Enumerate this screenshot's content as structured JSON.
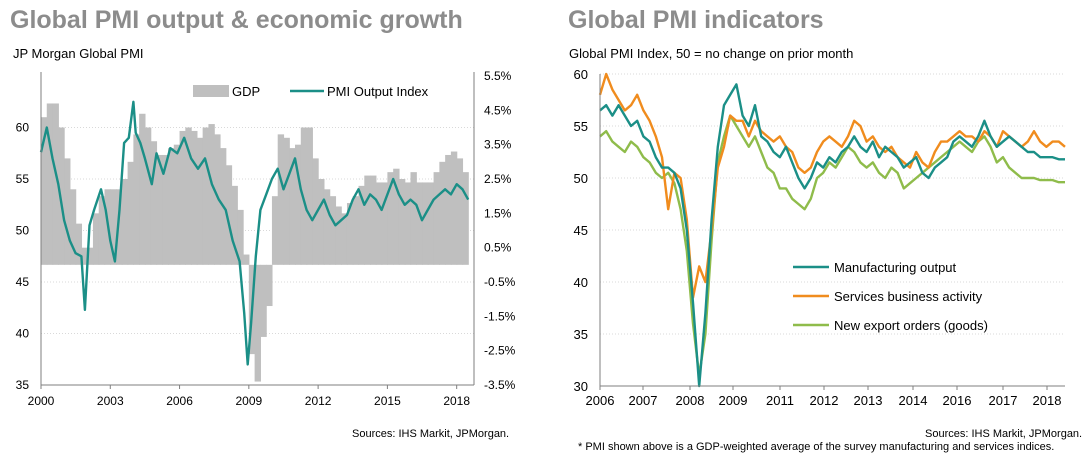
{
  "left": {
    "title": "Global PMI output & economic growth",
    "subtitle": "JP Morgan Global  PMI",
    "source": "Sources: IHS Markit, JPMorgan."
  },
  "right": {
    "title": "Global PMI indicators",
    "subtitle": "Global  PMI Index, 50 = no change on prior month",
    "source": "Sources: IHS Markit, JPMorgan.",
    "footnote": "* PMI shown above is a GDP-weighted average of the survey manufacturing and services indices."
  },
  "chart_data": [
    {
      "type": "bar",
      "secondary_type": "line",
      "x_ticks": [
        "2000",
        "2003",
        "2006",
        "2009",
        "2012",
        "2015",
        "2018"
      ],
      "ylim": [
        35,
        65
      ],
      "y_ticks": [
        "60",
        "55",
        "50",
        "45",
        "40",
        "35"
      ],
      "y2lim": [
        -3.5,
        5.5
      ],
      "y2_ticks": [
        "5.5%",
        "4.5%",
        "3.5%",
        "2.5%",
        "1.5%",
        "0.5%",
        "-0.5%",
        "-1.5%",
        "-2.5%",
        "-3.5%"
      ],
      "legend": {
        "position": "top-right",
        "entries": [
          "GDP",
          "PMI Output Index"
        ]
      },
      "colors": {
        "gdp": "#bfbfbf",
        "pmi": "#1b8f87"
      },
      "series": [
        {
          "name": "GDP",
          "axis": "right",
          "x": [
            2000.0,
            2000.25,
            2000.5,
            2000.75,
            2001.0,
            2001.25,
            2001.5,
            2001.75,
            2002.0,
            2002.25,
            2002.5,
            2002.75,
            2003.0,
            2003.25,
            2003.5,
            2003.75,
            2004.0,
            2004.25,
            2004.5,
            2004.75,
            2005.0,
            2005.25,
            2005.5,
            2005.75,
            2006.0,
            2006.25,
            2006.5,
            2006.75,
            2007.0,
            2007.25,
            2007.5,
            2007.75,
            2008.0,
            2008.25,
            2008.5,
            2008.75,
            2009.0,
            2009.25,
            2009.5,
            2009.75,
            2010.0,
            2010.25,
            2010.5,
            2010.75,
            2011.0,
            2011.25,
            2011.5,
            2011.75,
            2012.0,
            2012.25,
            2012.5,
            2012.75,
            2013.0,
            2013.25,
            2013.5,
            2013.75,
            2014.0,
            2014.25,
            2014.5,
            2014.75,
            2015.0,
            2015.25,
            2015.5,
            2015.75,
            2016.0,
            2016.25,
            2016.5,
            2016.75,
            2017.0,
            2017.25,
            2017.5,
            2017.75,
            2018.0,
            2018.25
          ],
          "values": [
            4.3,
            4.7,
            4.7,
            4.0,
            3.1,
            2.2,
            1.2,
            0.5,
            0.5,
            1.5,
            2.0,
            2.2,
            2.2,
            2.2,
            2.5,
            3.0,
            3.8,
            4.4,
            4.0,
            3.6,
            3.2,
            3.2,
            3.4,
            3.5,
            3.9,
            4.0,
            3.9,
            3.7,
            4.0,
            4.1,
            3.8,
            3.4,
            2.9,
            2.3,
            1.6,
            0.3,
            -2.6,
            -3.4,
            -2.1,
            -1.2,
            2.0,
            3.8,
            3.7,
            3.4,
            3.5,
            4.0,
            4.0,
            3.1,
            2.5,
            2.2,
            2.0,
            1.7,
            1.5,
            1.8,
            2.0,
            2.3,
            2.6,
            2.6,
            2.4,
            2.4,
            2.7,
            2.8,
            2.5,
            2.4,
            2.7,
            2.4,
            2.4,
            2.4,
            2.7,
            3.0,
            3.2,
            3.3,
            3.1,
            2.7
          ]
        },
        {
          "name": "PMI Output Index",
          "axis": "left",
          "x": [
            2000.0,
            2000.25,
            2000.5,
            2000.75,
            2001.0,
            2001.25,
            2001.5,
            2001.75,
            2001.9,
            2002.1,
            2002.3,
            2002.6,
            2002.8,
            2003.0,
            2003.2,
            2003.4,
            2003.6,
            2003.8,
            2004.0,
            2004.1,
            2004.3,
            2004.5,
            2004.8,
            2005.0,
            2005.3,
            2005.6,
            2005.9,
            2006.2,
            2006.5,
            2006.8,
            2007.1,
            2007.4,
            2007.7,
            2008.0,
            2008.3,
            2008.6,
            2008.8,
            2008.95,
            2009.1,
            2009.3,
            2009.5,
            2009.75,
            2010.0,
            2010.25,
            2010.5,
            2010.75,
            2011.0,
            2011.25,
            2011.5,
            2011.75,
            2012.0,
            2012.25,
            2012.5,
            2012.75,
            2013.0,
            2013.25,
            2013.5,
            2013.75,
            2014.0,
            2014.25,
            2014.5,
            2014.75,
            2015.0,
            2015.25,
            2015.5,
            2015.75,
            2016.0,
            2016.25,
            2016.5,
            2016.75,
            2017.0,
            2017.25,
            2017.5,
            2017.75,
            2018.0,
            2018.25,
            2018.5
          ],
          "values": [
            57.6,
            60.0,
            57.0,
            54.5,
            51.0,
            49.0,
            47.8,
            47.5,
            42.3,
            50.5,
            52.0,
            54.0,
            52.0,
            49.0,
            47.0,
            52.0,
            58.5,
            59.0,
            62.5,
            59.5,
            58.5,
            57.0,
            54.5,
            57.5,
            55.5,
            58.0,
            57.5,
            59.0,
            57.0,
            56.0,
            57.0,
            54.5,
            53.0,
            52.0,
            49.0,
            47.0,
            42.0,
            37.0,
            41.0,
            47.5,
            52.0,
            53.5,
            55.0,
            56.0,
            54.0,
            55.5,
            57.0,
            54.0,
            52.0,
            51.0,
            52.0,
            53.0,
            51.5,
            50.5,
            51.0,
            51.5,
            53.0,
            54.0,
            52.5,
            53.5,
            53.0,
            52.0,
            53.5,
            55.0,
            53.5,
            52.5,
            53.0,
            52.5,
            51.0,
            52.0,
            53.0,
            53.5,
            54.0,
            53.5,
            54.5,
            54.0,
            53.0
          ]
        }
      ]
    },
    {
      "type": "line",
      "x_ticks": [
        "2006",
        "2007",
        "2008",
        "2009",
        "2011",
        "2012",
        "2013",
        "2014",
        "2016",
        "2017",
        "2018"
      ],
      "ylim": [
        30,
        60
      ],
      "y_ticks": [
        "60",
        "55",
        "50",
        "45",
        "40",
        "35",
        "30"
      ],
      "legend": {
        "position": "center-right",
        "entries": [
          "Manufacturing output",
          "Services business activity",
          "New export orders (goods)"
        ]
      },
      "colors": {
        "manufacturing": "#1b8f87",
        "services": "#f08c1e",
        "exports": "#8fbc4b"
      },
      "series": [
        {
          "name": "Manufacturing output",
          "x": [
            0,
            2,
            4,
            6,
            8,
            10,
            12,
            14,
            16,
            18,
            20,
            22,
            24,
            26,
            28,
            30,
            32,
            34,
            36,
            38,
            40,
            42,
            44,
            46,
            48,
            50,
            52,
            54,
            56,
            58,
            60,
            62,
            64,
            66,
            68,
            70,
            72,
            74,
            76,
            78,
            80,
            82,
            84,
            86,
            88,
            90,
            92,
            94,
            96,
            98,
            100,
            102,
            104,
            106,
            108,
            110,
            112,
            114,
            116,
            118,
            120,
            122,
            124,
            126,
            128,
            130,
            132,
            134,
            136,
            138,
            140,
            142,
            144,
            146,
            148,
            150
          ],
          "values": [
            56.5,
            57.0,
            56.0,
            57.0,
            56.0,
            55.0,
            55.5,
            54.0,
            53.5,
            52.0,
            51.0,
            51.0,
            50.5,
            49.0,
            45.0,
            38.0,
            30.0,
            37.0,
            46.0,
            53.0,
            57.0,
            58.0,
            59.0,
            56.0,
            55.0,
            57.0,
            54.0,
            53.5,
            52.5,
            52.0,
            53.0,
            51.5,
            50.0,
            49.0,
            50.0,
            51.5,
            51.0,
            52.0,
            51.5,
            52.5,
            53.0,
            54.0,
            53.0,
            52.5,
            53.5,
            52.0,
            53.0,
            52.5,
            52.0,
            51.0,
            51.5,
            52.0,
            50.5,
            50.0,
            51.0,
            51.5,
            52.0,
            53.5,
            54.0,
            53.5,
            53.0,
            54.0,
            55.5,
            54.0,
            53.0,
            53.5,
            54.0,
            53.5,
            53.0,
            52.5,
            52.5,
            52.0,
            52.0,
            52.0,
            51.8,
            51.8
          ]
        },
        {
          "name": "Services business activity",
          "x": [
            0,
            2,
            4,
            6,
            8,
            10,
            12,
            14,
            16,
            18,
            20,
            22,
            24,
            26,
            28,
            30,
            32,
            34,
            36,
            38,
            40,
            42,
            44,
            46,
            48,
            50,
            52,
            54,
            56,
            58,
            60,
            62,
            64,
            66,
            68,
            70,
            72,
            74,
            76,
            78,
            80,
            82,
            84,
            86,
            88,
            90,
            92,
            94,
            96,
            98,
            100,
            102,
            104,
            106,
            108,
            110,
            112,
            114,
            116,
            118,
            120,
            122,
            124,
            126,
            128,
            130,
            132,
            134,
            136,
            138,
            140,
            142,
            144,
            146,
            148,
            150
          ],
          "values": [
            58.0,
            60.0,
            58.5,
            57.5,
            56.5,
            57.0,
            58.0,
            56.5,
            55.5,
            54.0,
            52.0,
            47.0,
            50.5,
            50.0,
            46.0,
            38.5,
            41.5,
            40.0,
            45.0,
            51.0,
            53.0,
            56.0,
            55.5,
            55.5,
            54.0,
            55.5,
            54.5,
            54.0,
            53.5,
            54.0,
            53.0,
            52.5,
            51.0,
            50.5,
            51.0,
            52.5,
            53.5,
            54.0,
            53.5,
            53.0,
            54.0,
            55.5,
            55.0,
            53.5,
            54.0,
            53.0,
            52.5,
            53.0,
            52.0,
            51.5,
            51.0,
            52.5,
            51.5,
            51.0,
            52.5,
            53.5,
            53.5,
            54.0,
            54.5,
            54.0,
            54.0,
            53.5,
            54.5,
            54.0,
            53.0,
            54.5,
            54.0,
            53.5,
            53.0,
            53.5,
            54.5,
            53.5,
            53.0,
            53.5,
            53.5,
            53.0
          ]
        },
        {
          "name": "New export orders (goods)",
          "x": [
            0,
            2,
            4,
            6,
            8,
            10,
            12,
            14,
            16,
            18,
            20,
            22,
            24,
            26,
            28,
            30,
            32,
            34,
            36,
            38,
            40,
            42,
            44,
            46,
            48,
            50,
            52,
            54,
            56,
            58,
            60,
            62,
            64,
            66,
            68,
            70,
            72,
            74,
            76,
            78,
            80,
            82,
            84,
            86,
            88,
            90,
            92,
            94,
            96,
            98,
            100,
            102,
            104,
            106,
            108,
            110,
            112,
            114,
            116,
            118,
            120,
            122,
            124,
            126,
            128,
            130,
            132,
            134,
            136,
            138,
            140,
            142,
            144,
            146,
            148,
            150
          ],
          "values": [
            54.0,
            54.5,
            53.5,
            53.0,
            52.5,
            53.5,
            53.0,
            52.0,
            51.5,
            50.5,
            50.0,
            50.5,
            49.5,
            47.0,
            43.0,
            36.0,
            31.0,
            35.0,
            44.0,
            51.5,
            54.0,
            56.0,
            55.0,
            54.0,
            53.0,
            54.0,
            52.5,
            51.0,
            50.5,
            49.0,
            49.0,
            48.0,
            47.5,
            47.0,
            48.0,
            50.0,
            50.5,
            51.5,
            51.0,
            52.0,
            53.0,
            52.5,
            51.5,
            51.0,
            51.5,
            50.5,
            50.0,
            51.0,
            50.5,
            49.0,
            49.5,
            50.0,
            50.5,
            51.0,
            51.5,
            52.0,
            52.5,
            53.0,
            53.5,
            53.0,
            52.5,
            53.5,
            54.0,
            53.0,
            51.5,
            52.0,
            51.0,
            50.5,
            50.0,
            50.0,
            50.0,
            49.8,
            49.8,
            49.8,
            49.6,
            49.6
          ]
        }
      ]
    }
  ]
}
